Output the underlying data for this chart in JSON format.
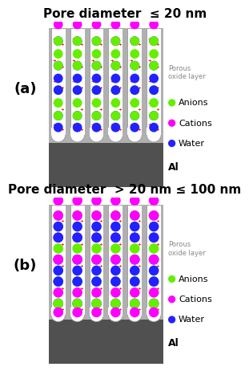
{
  "title_a": "Pore diameter  ≤ 20 nm",
  "title_b": "Pore diameter  > 20 nm ≤ 100 nm",
  "label_a": "(a)",
  "label_b": "(b)",
  "label_porous": "Porous\noxide layer",
  "label_al": "Al",
  "legend_anions": "Anions",
  "legend_cations": "Cations",
  "legend_water": "Water",
  "color_anion": "#66ee00",
  "color_cation": "#ff00ff",
  "color_water": "#2222ff",
  "color_plus": "#ff0000",
  "color_oxide": "#b0b0b0",
  "color_al": "#505050",
  "bg_color": "#ffffff",
  "text_color": "#888888",
  "title_fontsize": 11,
  "label_fontsize": 13,
  "legend_fontsize": 8
}
